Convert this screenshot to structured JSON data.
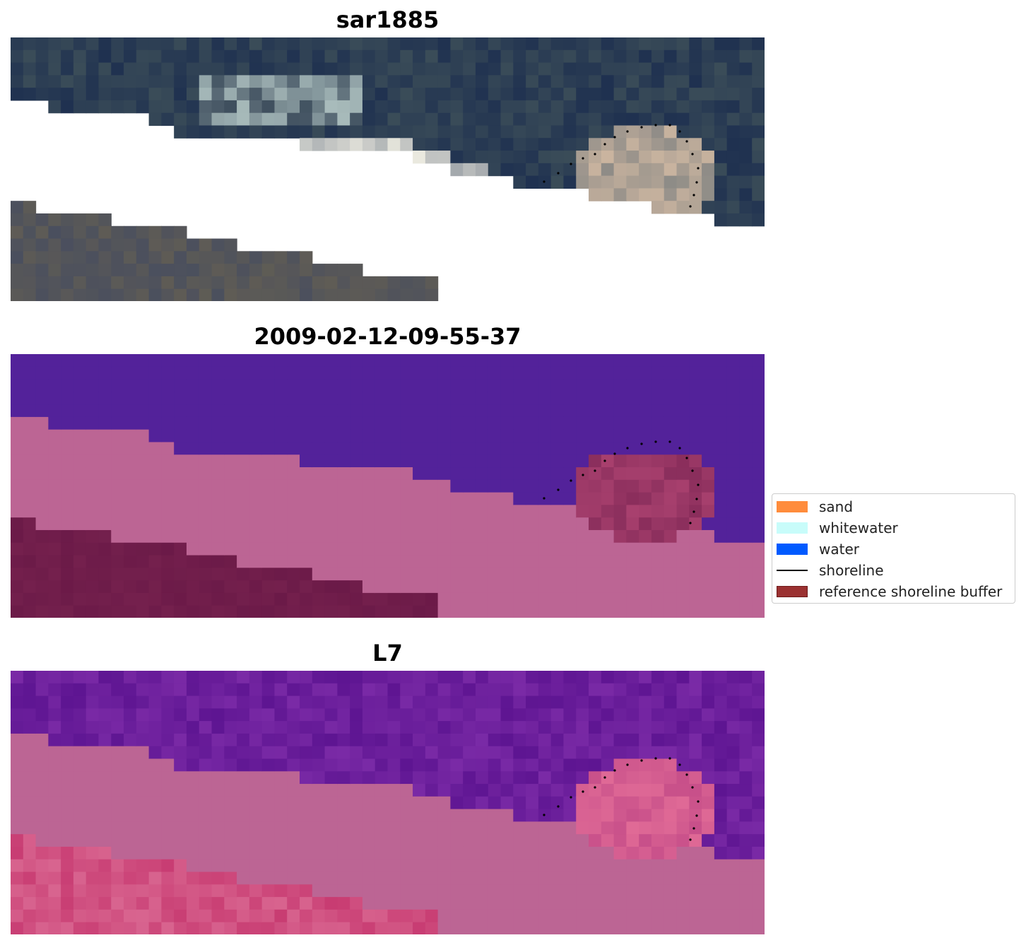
{
  "panels": [
    {
      "title": "sar1885",
      "scheme": "rgb"
    },
    {
      "title": "2009-02-12-09-55-37",
      "scheme": "class"
    },
    {
      "title": "L7",
      "scheme": "index"
    }
  ],
  "legend": {
    "items": [
      {
        "label": "sand",
        "color": "#ff8c3c",
        "kind": "patch"
      },
      {
        "label": "whitewater",
        "color": "#c8fcfa",
        "kind": "patch"
      },
      {
        "label": "water",
        "color": "#005aff",
        "kind": "patch"
      },
      {
        "label": "shoreline",
        "color": "#000000",
        "kind": "line"
      },
      {
        "label": "reference shoreline buffer",
        "color": "#9b3131",
        "kind": "patch"
      }
    ]
  },
  "colors": {
    "water_rgb": "#26374f",
    "class_water": "#53229a",
    "class_land": "#bc6594",
    "class_dark": "#6b1a48",
    "index_water": "#6a1c98",
    "index_land": "#bc6594",
    "index_red": "#c0134a"
  }
}
